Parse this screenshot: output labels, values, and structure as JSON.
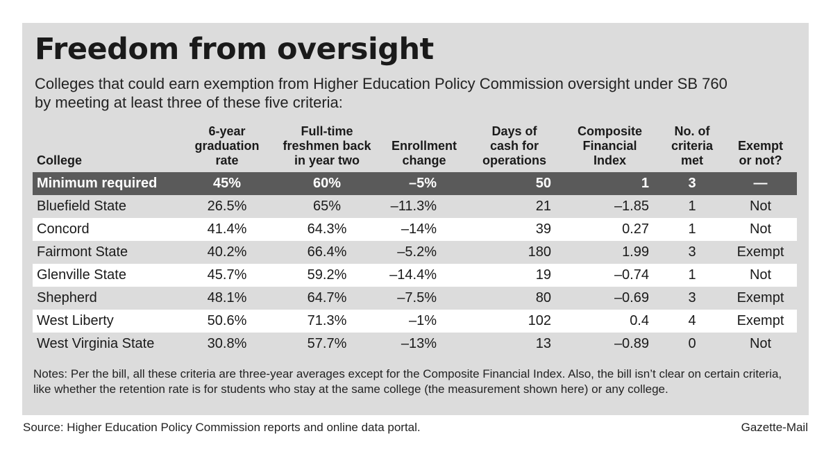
{
  "title": "Freedom from oversight",
  "subtitle": "Colleges that could earn exemption from Higher Education Policy Commission oversight under SB 760 by meeting at least three of these five criteria:",
  "chart_data": {
    "type": "table",
    "columns": [
      [
        "College"
      ],
      [
        "6-year",
        "graduation",
        "rate"
      ],
      [
        "Full-time",
        "freshmen back",
        "in year two"
      ],
      [
        "Enrollment",
        "change"
      ],
      [
        "Days of",
        "cash for",
        "operations"
      ],
      [
        "Composite",
        "Financial",
        "Index"
      ],
      [
        "No. of",
        "criteria",
        "met"
      ],
      [
        "Exempt",
        "or not?"
      ]
    ],
    "minimum": [
      "Minimum required",
      "45%",
      "60%",
      "–5%",
      "50",
      "1",
      "3",
      "—"
    ],
    "rows": [
      [
        "Bluefield State",
        "26.5%",
        "65%",
        "–11.3%",
        "21",
        "–1.85",
        "1",
        "Not"
      ],
      [
        "Concord",
        "41.4%",
        "64.3%",
        "–14%",
        "39",
        "0.27",
        "1",
        "Not"
      ],
      [
        "Fairmont State",
        "40.2%",
        "66.4%",
        "–5.2%",
        "180",
        "1.99",
        "3",
        "Exempt"
      ],
      [
        "Glenville State",
        "45.7%",
        "59.2%",
        "–14.4%",
        "19",
        "–0.74",
        "1",
        "Not"
      ],
      [
        "Shepherd",
        "48.1%",
        "64.7%",
        "–7.5%",
        "80",
        "–0.69",
        "3",
        "Exempt"
      ],
      [
        "West Liberty",
        "50.6%",
        "71.3%",
        "–1%",
        "102",
        "0.4",
        "4",
        "Exempt"
      ],
      [
        "West Virginia State",
        "30.8%",
        "57.7%",
        "–13%",
        "13",
        "–0.89",
        "0",
        "Not"
      ]
    ]
  },
  "notes": "Notes: Per the bill, all these criteria are three-year averages except for the Composite Financial Index. Also, the bill isn’t clear on certain criteria, like whether the retention rate is for students who stay at the same college (the measurement shown here) or any college.",
  "source": "Source: Higher Education Policy Commission reports and online data portal.",
  "credit": "Gazette-Mail",
  "colors": {
    "panel": "#dcdcdc",
    "min_row": "#5a5a5a",
    "stripe": "#ffffff"
  }
}
